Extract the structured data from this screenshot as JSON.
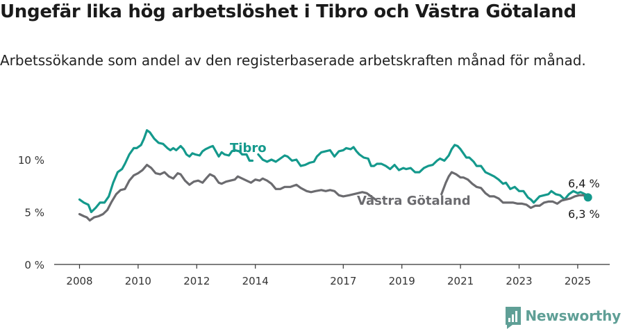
{
  "title": "Ungefär lika hög arbetslöshet i Tibro och Västra Götaland",
  "subtitle": "Arbetssökande som andel av den registerbaserade arbetskraften månad för månad.",
  "brand": {
    "name": "Newsworthy",
    "icon": "newsworthy-logo-icon",
    "color": "#5f9f96"
  },
  "chart_data": {
    "type": "line",
    "title": "Ungefär lika hög arbetslöshet i Tibro och Västra Götaland",
    "subtitle": "Arbetssökande som andel av den registerbaserade arbetskraften månad för månad.",
    "xlabel": "",
    "ylabel": "",
    "xlim": [
      2007.85,
      2026.1
    ],
    "ylim": [
      0,
      14
    ],
    "x_ticks": [
      2008,
      2010,
      2012,
      2014,
      2017,
      2019,
      2021,
      2023,
      2025
    ],
    "x_tick_labels": [
      "2008",
      "2010",
      "2012",
      "2014",
      "2017",
      "2019",
      "2021",
      "2023",
      "2025"
    ],
    "y_ticks": [
      0,
      5,
      10
    ],
    "y_tick_labels": [
      "0 %",
      "5 %",
      "10 %"
    ],
    "grid": false,
    "series": [
      {
        "name": "Tibro",
        "color": "#14998c",
        "label": "Tibro",
        "points": [
          [
            2008.0,
            6.2
          ],
          [
            2008.15,
            5.9
          ],
          [
            2008.3,
            5.7
          ],
          [
            2008.4,
            5.0
          ],
          [
            2008.55,
            5.4
          ],
          [
            2008.7,
            5.9
          ],
          [
            2008.85,
            5.9
          ],
          [
            2009.0,
            6.5
          ],
          [
            2009.15,
            7.8
          ],
          [
            2009.3,
            8.8
          ],
          [
            2009.45,
            9.1
          ],
          [
            2009.55,
            9.6
          ],
          [
            2009.7,
            10.5
          ],
          [
            2009.85,
            11.1
          ],
          [
            2009.95,
            11.1
          ],
          [
            2010.1,
            11.4
          ],
          [
            2010.2,
            12.0
          ],
          [
            2010.3,
            12.8
          ],
          [
            2010.4,
            12.6
          ],
          [
            2010.55,
            12.0
          ],
          [
            2010.7,
            11.6
          ],
          [
            2010.85,
            11.5
          ],
          [
            2011.0,
            11.1
          ],
          [
            2011.1,
            10.9
          ],
          [
            2011.2,
            11.1
          ],
          [
            2011.3,
            10.9
          ],
          [
            2011.45,
            11.3
          ],
          [
            2011.55,
            11.0
          ],
          [
            2011.65,
            10.5
          ],
          [
            2011.75,
            10.3
          ],
          [
            2011.85,
            10.6
          ],
          [
            2011.95,
            10.5
          ],
          [
            2012.1,
            10.4
          ],
          [
            2012.2,
            10.8
          ],
          [
            2012.3,
            11.0
          ],
          [
            2012.45,
            11.2
          ],
          [
            2012.55,
            11.3
          ],
          [
            2012.65,
            10.8
          ],
          [
            2012.75,
            10.3
          ],
          [
            2012.85,
            10.7
          ],
          [
            2012.95,
            10.5
          ],
          [
            2013.1,
            10.4
          ],
          [
            2013.2,
            10.8
          ],
          [
            2013.3,
            10.9
          ],
          [
            2013.45,
            10.8
          ],
          [
            2013.55,
            10.5
          ],
          [
            2013.7,
            10.5
          ],
          [
            2013.8,
            9.9
          ],
          [
            2013.9,
            9.9
          ],
          null,
          [
            2014.1,
            10.5
          ],
          [
            2014.25,
            10.0
          ],
          [
            2014.4,
            9.8
          ],
          [
            2014.55,
            10.0
          ],
          [
            2014.7,
            9.8
          ],
          [
            2014.9,
            10.2
          ],
          [
            2015.0,
            10.4
          ],
          [
            2015.1,
            10.3
          ],
          [
            2015.25,
            9.9
          ],
          [
            2015.4,
            10.0
          ],
          [
            2015.55,
            9.4
          ],
          [
            2015.7,
            9.5
          ],
          [
            2015.85,
            9.7
          ],
          [
            2016.0,
            9.8
          ],
          [
            2016.1,
            10.3
          ],
          [
            2016.25,
            10.7
          ],
          [
            2016.4,
            10.8
          ],
          [
            2016.55,
            10.9
          ],
          [
            2016.7,
            10.3
          ],
          [
            2016.85,
            10.8
          ],
          [
            2017.0,
            10.9
          ],
          [
            2017.1,
            11.1
          ],
          [
            2017.25,
            11.0
          ],
          [
            2017.35,
            11.2
          ],
          [
            2017.45,
            10.8
          ],
          [
            2017.55,
            10.5
          ],
          [
            2017.7,
            10.2
          ],
          [
            2017.85,
            10.1
          ],
          [
            2017.95,
            9.4
          ],
          [
            2018.05,
            9.4
          ],
          [
            2018.15,
            9.6
          ],
          [
            2018.3,
            9.6
          ],
          [
            2018.45,
            9.4
          ],
          [
            2018.6,
            9.1
          ],
          [
            2018.75,
            9.5
          ],
          [
            2018.9,
            9.0
          ],
          [
            2019.05,
            9.2
          ],
          [
            2019.15,
            9.1
          ],
          [
            2019.3,
            9.2
          ],
          [
            2019.45,
            8.8
          ],
          [
            2019.6,
            8.8
          ],
          [
            2019.75,
            9.2
          ],
          [
            2019.9,
            9.4
          ],
          [
            2020.05,
            9.5
          ],
          [
            2020.2,
            9.9
          ],
          [
            2020.3,
            10.1
          ],
          [
            2020.45,
            9.9
          ],
          [
            2020.6,
            10.4
          ],
          [
            2020.7,
            11.0
          ],
          [
            2020.8,
            11.4
          ],
          [
            2020.9,
            11.3
          ],
          [
            2021.0,
            11.0
          ],
          [
            2021.1,
            10.6
          ],
          [
            2021.2,
            10.2
          ],
          [
            2021.3,
            10.2
          ],
          [
            2021.45,
            9.8
          ],
          [
            2021.55,
            9.4
          ],
          [
            2021.7,
            9.4
          ],
          [
            2021.85,
            8.8
          ],
          [
            2022.0,
            8.6
          ],
          [
            2022.15,
            8.4
          ],
          [
            2022.3,
            8.1
          ],
          [
            2022.45,
            7.7
          ],
          [
            2022.55,
            7.8
          ],
          [
            2022.7,
            7.2
          ],
          [
            2022.85,
            7.4
          ],
          [
            2023.0,
            7.0
          ],
          [
            2023.15,
            7.0
          ],
          [
            2023.3,
            6.4
          ],
          [
            2023.4,
            6.2
          ],
          [
            2023.5,
            5.9
          ],
          [
            2023.6,
            6.2
          ],
          [
            2023.7,
            6.5
          ],
          [
            2023.85,
            6.6
          ],
          [
            2024.0,
            6.7
          ],
          [
            2024.1,
            7.0
          ],
          [
            2024.25,
            6.7
          ],
          [
            2024.4,
            6.6
          ],
          [
            2024.55,
            6.2
          ],
          [
            2024.7,
            6.7
          ],
          [
            2024.85,
            7.0
          ],
          [
            2025.0,
            6.8
          ],
          [
            2025.1,
            6.9
          ],
          [
            2025.25,
            6.7
          ],
          [
            2025.35,
            6.4
          ]
        ]
      },
      {
        "name": "Västra Götaland",
        "color": "#6b6b6f",
        "label": "Västra Götaland",
        "points": [
          [
            2008.0,
            4.8
          ],
          [
            2008.15,
            4.6
          ],
          [
            2008.25,
            4.5
          ],
          [
            2008.35,
            4.2
          ],
          [
            2008.5,
            4.5
          ],
          [
            2008.65,
            4.6
          ],
          [
            2008.8,
            4.8
          ],
          [
            2008.95,
            5.2
          ],
          [
            2009.1,
            6.0
          ],
          [
            2009.25,
            6.7
          ],
          [
            2009.4,
            7.1
          ],
          [
            2009.55,
            7.2
          ],
          [
            2009.7,
            8.0
          ],
          [
            2009.85,
            8.5
          ],
          [
            2010.0,
            8.7
          ],
          [
            2010.15,
            9.0
          ],
          [
            2010.3,
            9.5
          ],
          [
            2010.45,
            9.2
          ],
          [
            2010.6,
            8.7
          ],
          [
            2010.75,
            8.6
          ],
          [
            2010.9,
            8.8
          ],
          [
            2011.05,
            8.4
          ],
          [
            2011.2,
            8.2
          ],
          [
            2011.35,
            8.7
          ],
          [
            2011.45,
            8.6
          ],
          [
            2011.6,
            8.0
          ],
          [
            2011.75,
            7.6
          ],
          [
            2011.9,
            7.9
          ],
          [
            2012.05,
            8.0
          ],
          [
            2012.2,
            7.8
          ],
          [
            2012.35,
            8.3
          ],
          [
            2012.45,
            8.6
          ],
          [
            2012.6,
            8.4
          ],
          [
            2012.75,
            7.8
          ],
          [
            2012.85,
            7.7
          ],
          [
            2013.0,
            7.9
          ],
          [
            2013.15,
            8.0
          ],
          [
            2013.3,
            8.1
          ],
          [
            2013.4,
            8.4
          ],
          [
            2013.55,
            8.2
          ],
          [
            2013.7,
            8.0
          ],
          [
            2013.85,
            7.8
          ],
          [
            2014.0,
            8.1
          ],
          [
            2014.15,
            8.0
          ],
          [
            2014.25,
            8.2
          ],
          [
            2014.4,
            8.0
          ],
          [
            2014.55,
            7.7
          ],
          [
            2014.7,
            7.2
          ],
          [
            2014.85,
            7.2
          ],
          [
            2015.0,
            7.4
          ],
          [
            2015.2,
            7.4
          ],
          [
            2015.4,
            7.6
          ],
          [
            2015.55,
            7.3
          ],
          [
            2015.75,
            7.0
          ],
          [
            2015.9,
            6.9
          ],
          [
            2016.05,
            7.0
          ],
          [
            2016.25,
            7.1
          ],
          [
            2016.4,
            7.0
          ],
          [
            2016.55,
            7.1
          ],
          [
            2016.7,
            7.0
          ],
          [
            2016.85,
            6.6
          ],
          [
            2017.0,
            6.5
          ],
          [
            2017.2,
            6.6
          ],
          [
            2017.35,
            6.7
          ],
          [
            2017.5,
            6.8
          ],
          [
            2017.65,
            6.9
          ],
          [
            2017.8,
            6.8
          ],
          [
            2017.95,
            6.5
          ],
          [
            2018.1,
            6.2
          ],
          null,
          [
            2020.35,
            6.7
          ],
          [
            2020.5,
            7.8
          ],
          [
            2020.6,
            8.4
          ],
          [
            2020.7,
            8.8
          ],
          [
            2020.85,
            8.6
          ],
          [
            2021.0,
            8.3
          ],
          [
            2021.1,
            8.3
          ],
          [
            2021.25,
            8.1
          ],
          [
            2021.4,
            7.7
          ],
          [
            2021.55,
            7.4
          ],
          [
            2021.7,
            7.3
          ],
          [
            2021.85,
            6.8
          ],
          [
            2022.0,
            6.5
          ],
          [
            2022.15,
            6.5
          ],
          [
            2022.3,
            6.3
          ],
          [
            2022.45,
            5.9
          ],
          [
            2022.6,
            5.9
          ],
          [
            2022.8,
            5.9
          ],
          [
            2022.95,
            5.8
          ],
          [
            2023.1,
            5.8
          ],
          [
            2023.25,
            5.7
          ],
          [
            2023.4,
            5.4
          ],
          [
            2023.55,
            5.6
          ],
          [
            2023.7,
            5.6
          ],
          [
            2023.85,
            5.9
          ],
          [
            2024.0,
            6.0
          ],
          [
            2024.15,
            6.0
          ],
          [
            2024.3,
            5.8
          ],
          [
            2024.45,
            6.1
          ],
          [
            2024.6,
            6.2
          ],
          [
            2024.75,
            6.3
          ],
          [
            2024.9,
            6.5
          ],
          [
            2025.05,
            6.6
          ],
          [
            2025.2,
            6.6
          ],
          [
            2025.35,
            6.3
          ]
        ]
      }
    ],
    "end_labels": [
      {
        "series": "Tibro",
        "text": "6,4 %"
      },
      {
        "series": "Västra Götaland",
        "text": "6,3 %"
      }
    ]
  }
}
